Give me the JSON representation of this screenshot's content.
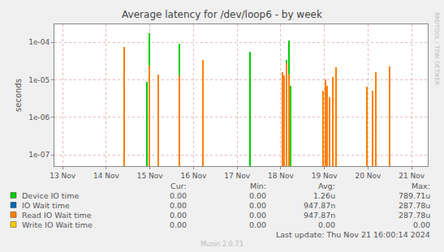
{
  "chart_data": {
    "type": "bar",
    "title": "Average latency for /dev/loop6 - by week",
    "y_label": "seconds",
    "log": "y",
    "grid": true,
    "x": [
      14.41,
      14.94,
      14.98,
      15.2,
      15.68,
      16.22,
      17.3,
      18.04,
      18.08,
      18.13,
      18.19,
      18.22,
      18.97,
      19.03,
      19.07,
      19.12,
      19.2,
      19.27,
      19.98,
      20.11,
      20.18,
      20.5
    ],
    "xlim": [
      12.81,
      21.37
    ],
    "xticks": [
      {
        "value": 13,
        "label": "13 Nov"
      },
      {
        "value": 14,
        "label": "14 Nov"
      },
      {
        "value": 15,
        "label": "15 Nov"
      },
      {
        "value": 16,
        "label": "16 Nov"
      },
      {
        "value": 17,
        "label": "17 Nov"
      },
      {
        "value": 18,
        "label": "18 Nov"
      },
      {
        "value": 19,
        "label": "19 Nov"
      },
      {
        "value": 20,
        "label": "20 Nov"
      },
      {
        "value": 21,
        "label": "21 Nov"
      }
    ],
    "ylim": [
      5e-08,
      0.0003
    ],
    "yticks": [
      {
        "value": 1e-07,
        "label": "1e-07"
      },
      {
        "value": 1e-06,
        "label": "1e-06"
      },
      {
        "value": 1e-05,
        "label": "1e-05"
      },
      {
        "value": 0.0001,
        "label": "1e-04"
      }
    ],
    "stats_headers": [
      "Cur:",
      "Min:",
      "Avg:",
      "Max:"
    ],
    "series": [
      {
        "name": "Device IO time",
        "color": "#00cc00",
        "values": [
          null,
          9e-06,
          0.00017,
          null,
          9e-05,
          null,
          5.5e-05,
          null,
          null,
          3.3e-05,
          0.00011,
          7e-06,
          null,
          null,
          null,
          null,
          null,
          null,
          null,
          null,
          null,
          null
        ],
        "stats": [
          "0.00",
          "0.00",
          "1.26u",
          "789.71u"
        ]
      },
      {
        "name": "IO Wait time",
        "color": "#0066b3",
        "values": [
          7.5e-05,
          null,
          2.4e-05,
          1.4e-05,
          1.3e-05,
          3.4e-05,
          null,
          1.6e-05,
          1.3e-05,
          2.7e-05,
          1.4e-05,
          null,
          5e-06,
          1e-05,
          7e-06,
          3.5e-06,
          1.2e-05,
          2.2e-05,
          6.5e-06,
          5e-06,
          1.6e-05,
          2.3e-05
        ],
        "stats": [
          "0.00",
          "0.00",
          "947.87n",
          "287.78u"
        ]
      },
      {
        "name": "Read IO Wait time",
        "color": "#ff8000",
        "values": [
          7.5e-05,
          null,
          2.4e-05,
          1.4e-05,
          1.3e-05,
          3.4e-05,
          null,
          1.6e-05,
          1.3e-05,
          2.7e-05,
          1.4e-05,
          null,
          5e-06,
          1e-05,
          7e-06,
          3.5e-06,
          1.2e-05,
          2.2e-05,
          6.5e-06,
          5e-06,
          1.6e-05,
          2.3e-05
        ],
        "stats": [
          "0.00",
          "0.00",
          "947.87n",
          "287.78u"
        ]
      },
      {
        "name": "Write IO Wait time",
        "color": "#ffcc00",
        "values": [
          null,
          null,
          null,
          null,
          null,
          null,
          null,
          null,
          null,
          null,
          null,
          null,
          null,
          null,
          null,
          null,
          null,
          null,
          null,
          null,
          null,
          null
        ],
        "stats": [
          "0.00",
          "0.00",
          "0.00",
          "0.00"
        ]
      }
    ],
    "last_update": "Last update: Thu Nov 21 16:00:14 2024",
    "credit": "Munin 2.0.73",
    "watermark": "RRDTOOL / TOBI OETIKER"
  }
}
